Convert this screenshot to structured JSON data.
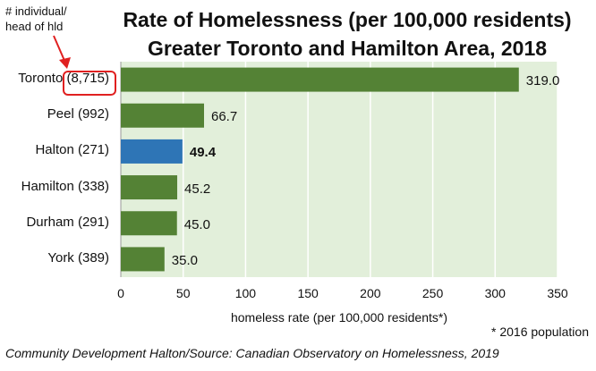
{
  "title_line1": "Rate of Homelessness (per 100,000 residents)",
  "title_line2": "Greater Toronto and Hamilton Area, 2018",
  "annotation": {
    "line1": "# individual/",
    "line2": "head of hld"
  },
  "footnote": "* 2016 population",
  "source": "Community Development Halton/Source: Canadian Observatory on Homelessness, 2019",
  "colors": {
    "bar": "#548235",
    "highlight": "#2e75b6",
    "plot_bg": "#e2efda",
    "callout": "#e02020"
  },
  "chart_data": {
    "type": "bar",
    "orientation": "horizontal",
    "categories": [
      "Toronto (8,715)",
      "Peel (992)",
      "Halton (271)",
      "Hamilton (338)",
      "Durham (291)",
      "York (389)"
    ],
    "values": [
      319.0,
      66.7,
      49.4,
      45.2,
      45.0,
      35.0
    ],
    "value_labels": [
      "319.0",
      "66.7",
      "49.4",
      "45.2",
      "45.0",
      "35.0"
    ],
    "highlight_index": 2,
    "xlabel": "homeless rate (per 100,000 residents*)",
    "xlim": [
      0,
      350
    ],
    "xticks": [
      "0",
      "50",
      "100",
      "150",
      "200",
      "250",
      "300",
      "350"
    ],
    "grid": true
  }
}
